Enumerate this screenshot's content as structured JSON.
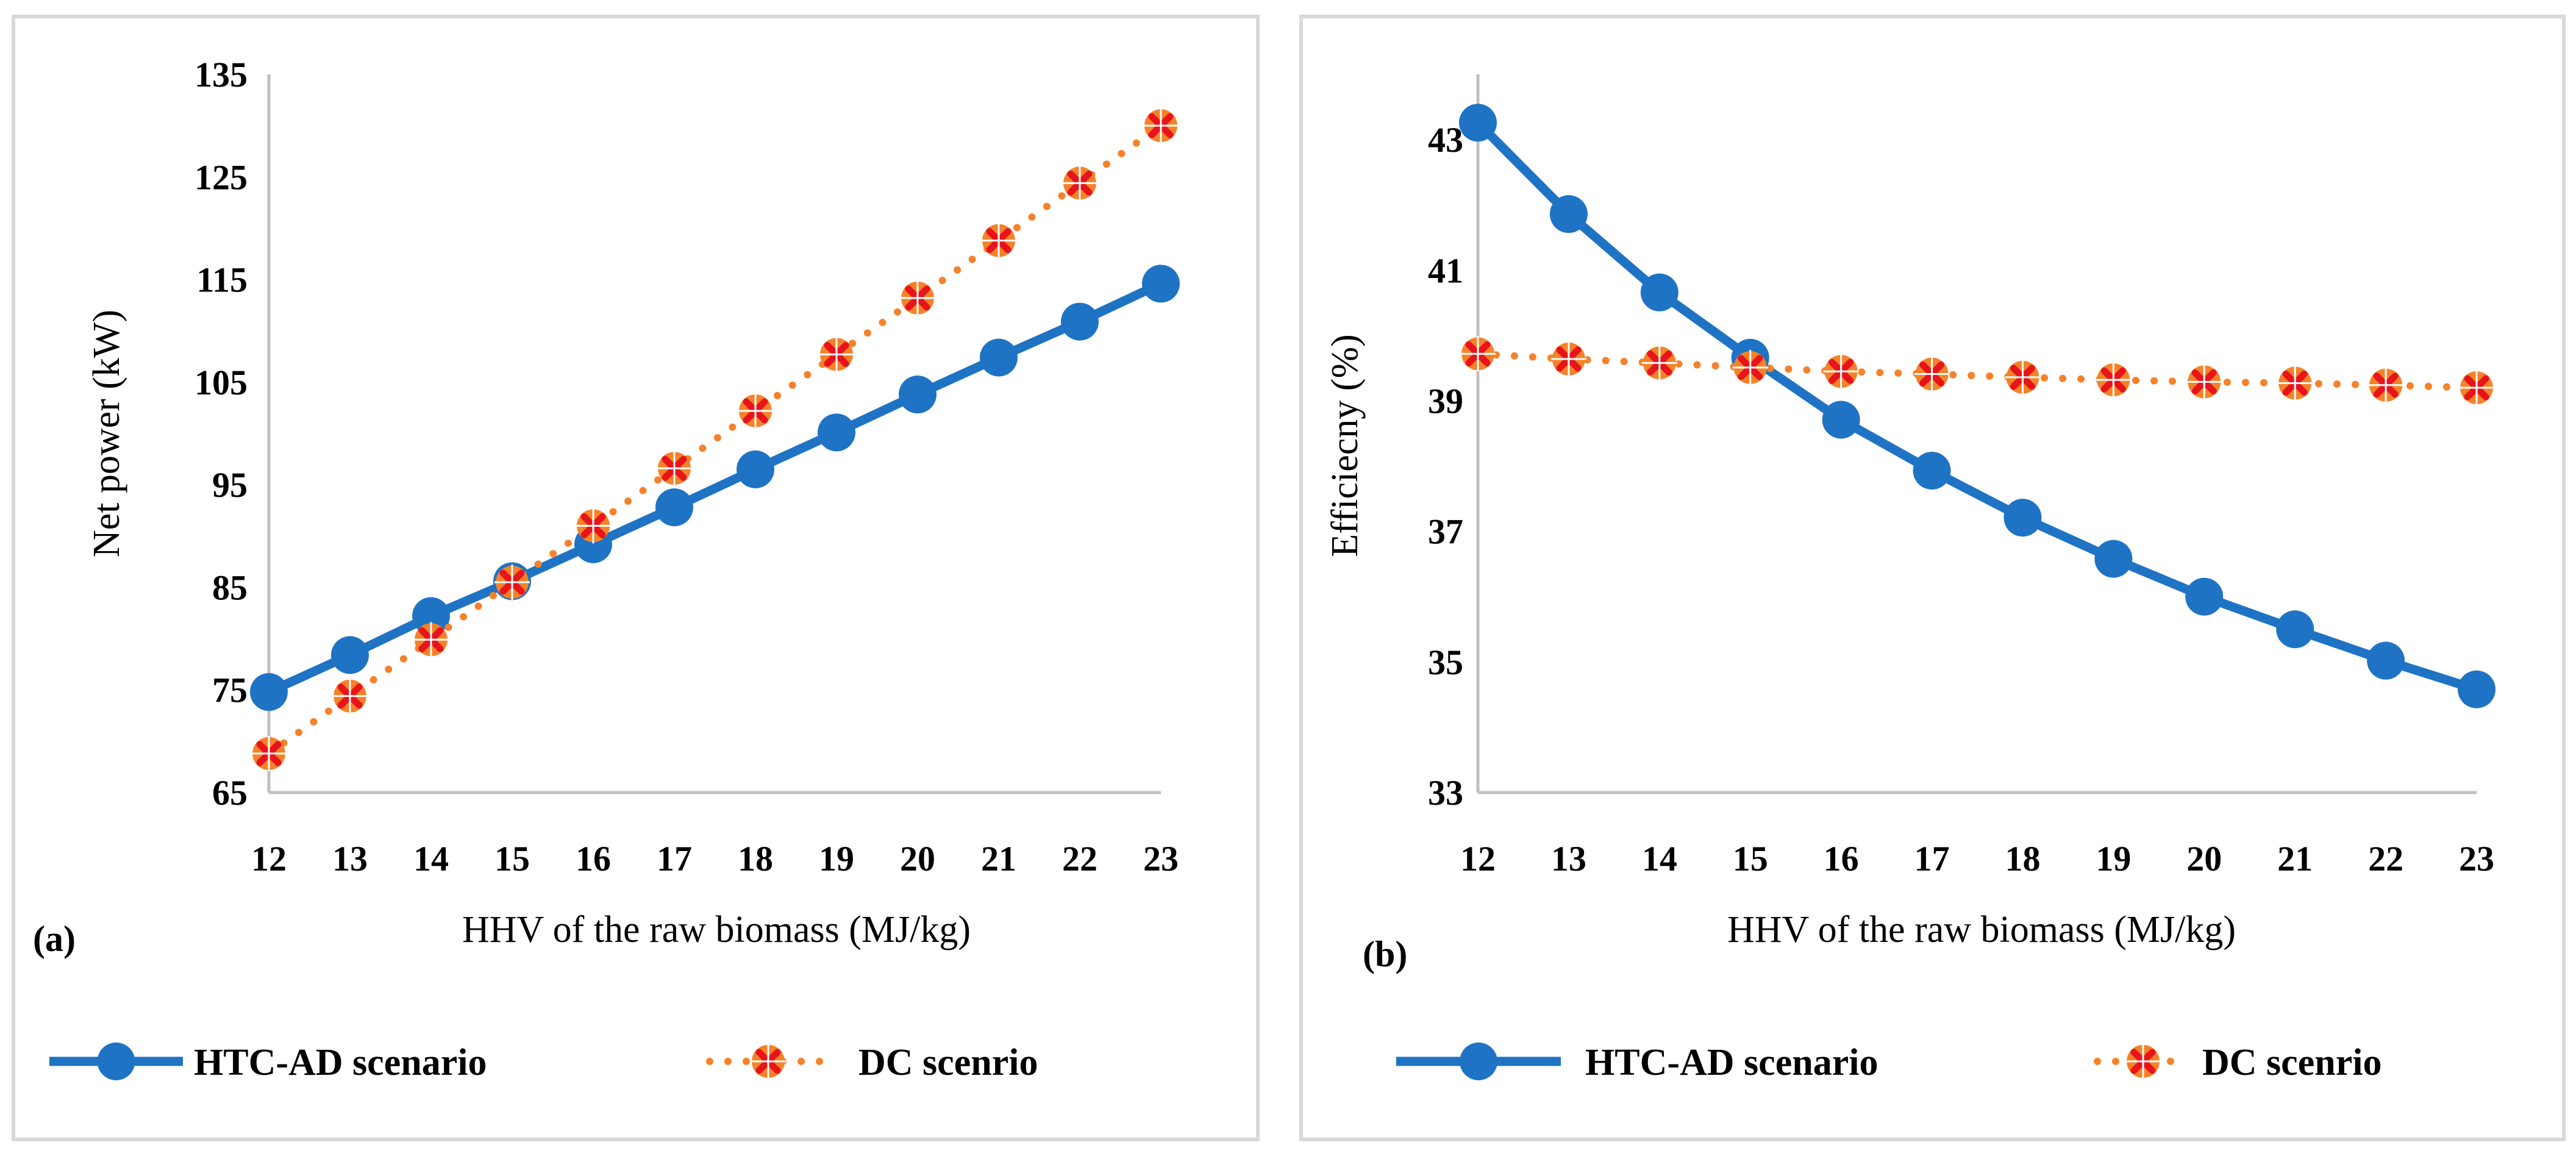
{
  "colors": {
    "htc": "#1F73C4",
    "dc_line": "#F5822A",
    "dc_marker_fill": "#F5822A",
    "dc_marker_cross": "#E8141B",
    "axis": "#BFBFBF",
    "border": "#D9D9D9"
  },
  "chart_data": [
    {
      "type": "line",
      "panel_label": "(a)",
      "xlabel": "HHV of the raw biomass (MJ/kg)",
      "ylabel": "Net power (kW)",
      "x": [
        12,
        13,
        14,
        15,
        16,
        17,
        18,
        19,
        20,
        21,
        22,
        23
      ],
      "xticks": [
        "12",
        "13",
        "14",
        "15",
        "16",
        "17",
        "18",
        "19",
        "20",
        "21",
        "22",
        "23"
      ],
      "yticks": [
        "65",
        "75",
        "85",
        "95",
        "105",
        "115",
        "125",
        "135"
      ],
      "ylim": [
        65,
        135
      ],
      "grid": false,
      "legend_position": "bottom",
      "series": [
        {
          "name": "HTC-AD scenario",
          "style": "solid-circle",
          "values": [
            74.8,
            78.4,
            82.2,
            85.6,
            89.2,
            92.8,
            96.5,
            100.1,
            103.8,
            107.4,
            110.9,
            114.6
          ]
        },
        {
          "name": "DC scenrio",
          "style": "dotted-cross",
          "values": [
            68.8,
            74.4,
            79.9,
            85.5,
            91.0,
            96.6,
            102.2,
            107.7,
            113.2,
            118.8,
            124.4,
            130.0
          ]
        }
      ]
    },
    {
      "type": "line",
      "panel_label": "(b)",
      "xlabel": "HHV of the raw biomass (MJ/kg)",
      "ylabel": "Efficiecny (%)",
      "x": [
        12,
        13,
        14,
        15,
        16,
        17,
        18,
        19,
        20,
        21,
        22,
        23
      ],
      "xticks": [
        "12",
        "13",
        "14",
        "15",
        "16",
        "17",
        "18",
        "19",
        "20",
        "21",
        "22",
        "23"
      ],
      "yticks": [
        "33",
        "35",
        "37",
        "39",
        "41",
        "43"
      ],
      "ylim": [
        33,
        44
      ],
      "grid": false,
      "legend_position": "bottom",
      "series": [
        {
          "name": "HTC-AD scenario",
          "style": "solid-circle",
          "values": [
            43.26,
            41.86,
            40.66,
            39.66,
            38.71,
            37.93,
            37.21,
            36.58,
            36.0,
            35.5,
            35.02,
            34.58
          ]
        },
        {
          "name": "DC scenrio",
          "style": "dotted-cross",
          "values": [
            39.72,
            39.64,
            39.58,
            39.51,
            39.45,
            39.41,
            39.36,
            39.32,
            39.29,
            39.27,
            39.24,
            39.2
          ]
        }
      ]
    }
  ]
}
